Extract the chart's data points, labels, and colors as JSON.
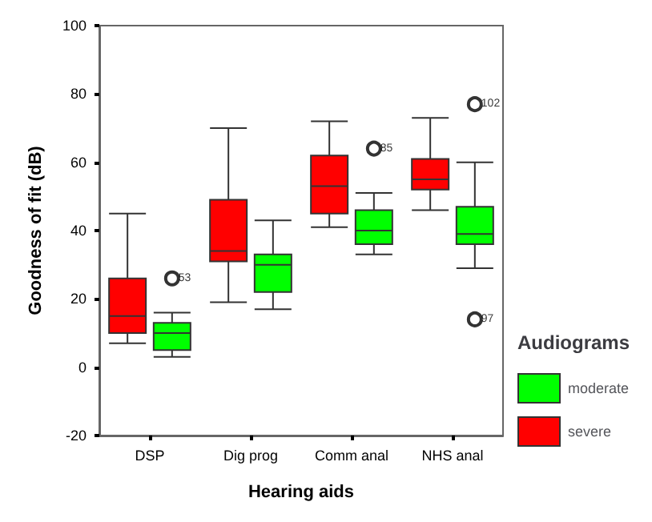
{
  "chart_data": {
    "type": "box",
    "xlabel": "Hearing aids",
    "ylabel": "Goodness of fit (dB)",
    "legend_title": "Audiograms",
    "categories": [
      "DSP",
      "Dig prog",
      "Comm anal",
      "NHS anal"
    ],
    "series": [
      {
        "name": "severe",
        "color": "#ff0000",
        "boxes": [
          {
            "low": 7,
            "q1": 10,
            "median": 15,
            "q3": 26,
            "high": 45
          },
          {
            "low": 19,
            "q1": 31,
            "median": 34,
            "q3": 49,
            "high": 70
          },
          {
            "low": 41,
            "q1": 45,
            "median": 53,
            "q3": 62,
            "high": 72
          },
          {
            "low": 46,
            "q1": 52,
            "median": 55,
            "q3": 61,
            "high": 73
          }
        ]
      },
      {
        "name": "moderate",
        "color": "#00ff00",
        "boxes": [
          {
            "low": 3,
            "q1": 5,
            "median": 10,
            "q3": 13,
            "high": 16,
            "outliers": [
              26
            ]
          },
          {
            "low": 17,
            "q1": 22,
            "median": 30,
            "q3": 33,
            "high": 43
          },
          {
            "low": 33,
            "q1": 36,
            "median": 40,
            "q3": 46,
            "high": 51,
            "outliers": [
              64
            ]
          },
          {
            "low": 29,
            "q1": 36,
            "median": 39,
            "q3": 47,
            "high": 60,
            "outliers": [
              77,
              14
            ]
          }
        ]
      }
    ],
    "annotations": [
      "53",
      "85",
      "102",
      "97"
    ],
    "ylim": [
      -20,
      100
    ],
    "yticks": [
      -20,
      0,
      20,
      40,
      60,
      80,
      100
    ],
    "grid": false,
    "legend": "right",
    "marker": "circle"
  }
}
